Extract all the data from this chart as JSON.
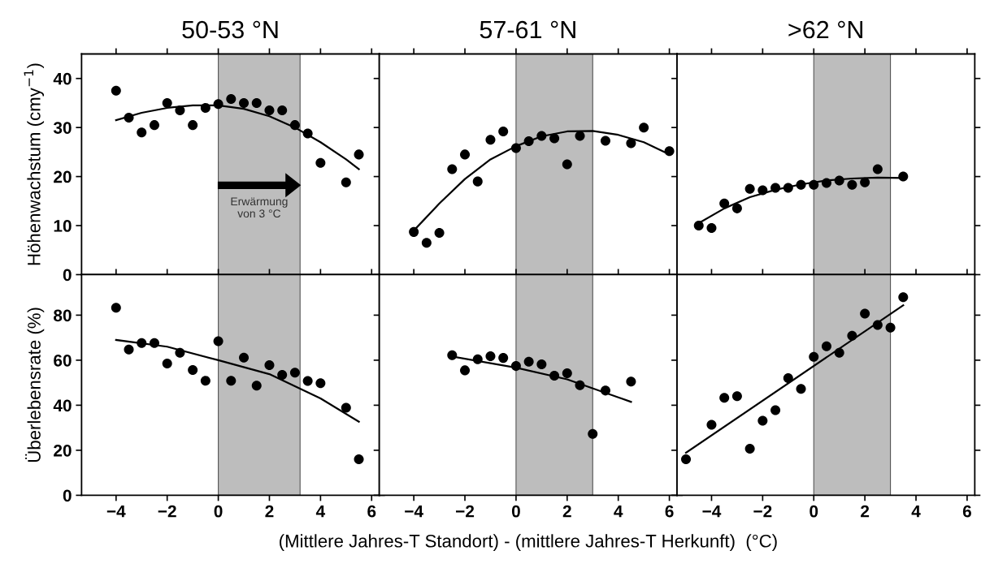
{
  "chart_data": [
    {
      "type": "scatter",
      "title": "50-53 °N",
      "ylabel": "Höhenwachstum (cmy$^{−1}$)",
      "xlim": [
        -5.35,
        6.3
      ],
      "xticks": [
        -4,
        -2,
        0,
        2,
        4,
        6
      ],
      "ylim": [
        0,
        45
      ],
      "yticks": [
        0,
        10,
        20,
        30,
        40
      ],
      "tick_labels": "y",
      "grid": false,
      "annotations": [
        "Erwärmung\nvon 3 °C"
      ],
      "bands": [
        {
          "axis": "x",
          "from": 0,
          "to": 3.2,
          "color": "#bdbdbd"
        }
      ],
      "series": [
        {
          "color": "#000000",
          "marker": "circle",
          "x": [
            -4,
            -3.5,
            -3,
            -2.5,
            -2,
            -1.5,
            -1,
            -0.5,
            0,
            0.5,
            1,
            1.5,
            2,
            2.5,
            3,
            3.5,
            4,
            5,
            5.5
          ],
          "values": [
            37.5,
            32,
            29,
            30.5,
            35,
            33.5,
            30.5,
            34,
            34.8,
            35.8,
            35,
            35,
            33.5,
            33.5,
            30.5,
            28.8,
            22.8,
            18.8,
            24.5
          ]
        },
        {
          "type": "line",
          "color": "#000000",
          "marker": "none",
          "x": [
            -4,
            -3,
            -2,
            -1,
            0,
            1,
            2,
            3,
            4,
            5,
            5.5
          ],
          "values": [
            31.5,
            33,
            34,
            34.5,
            34.5,
            33.8,
            32.3,
            30,
            27,
            23.5,
            21.5
          ]
        }
      ]
    },
    {
      "type": "scatter",
      "title": "57-61 °N",
      "xlim": [
        -5.35,
        6.3
      ],
      "xticks": [
        -4,
        -2,
        0,
        2,
        4,
        6
      ],
      "ylim": [
        0,
        45
      ],
      "yticks": [
        0,
        10,
        20,
        30,
        40
      ],
      "tick_labels": false,
      "grid": false,
      "bands": [
        {
          "axis": "x",
          "from": 0,
          "to": 3,
          "color": "#bdbdbd"
        }
      ],
      "series": [
        {
          "color": "#000000",
          "marker": "circle",
          "x": [
            -4,
            -3.5,
            -3,
            -2.5,
            -2,
            -1.5,
            -1,
            -0.5,
            0,
            0.5,
            1,
            1.5,
            2,
            2.5,
            3.5,
            4.5,
            5,
            6
          ],
          "values": [
            8.7,
            6.5,
            8.5,
            21.5,
            24.5,
            19,
            27.5,
            29.2,
            25.8,
            27.2,
            28.3,
            27.8,
            22.5,
            28.3,
            27.3,
            26.8,
            30,
            25.2
          ]
        },
        {
          "type": "line",
          "color": "#000000",
          "marker": "none",
          "x": [
            -4,
            -3,
            -2,
            -1,
            0,
            1,
            2,
            3,
            4,
            5,
            6
          ],
          "values": [
            9,
            14.5,
            19.5,
            23.5,
            26.2,
            28.2,
            29.2,
            29.3,
            28.5,
            27,
            24.5
          ]
        }
      ]
    },
    {
      "type": "scatter",
      "title": ">62 °N",
      "xlim": [
        -5.35,
        6.3
      ],
      "xticks": [
        -4,
        -2,
        0,
        2,
        4,
        6
      ],
      "ylim": [
        0,
        45
      ],
      "yticks": [
        0,
        10,
        20,
        30,
        40
      ],
      "tick_labels": false,
      "grid": false,
      "bands": [
        {
          "axis": "x",
          "from": 0,
          "to": 3,
          "color": "#bdbdbd"
        }
      ],
      "series": [
        {
          "color": "#000000",
          "marker": "circle",
          "x": [
            -4.5,
            -4,
            -3.5,
            -3,
            -2.5,
            -2,
            -1.5,
            -1,
            -0.5,
            0,
            0.5,
            1,
            1.5,
            2,
            2.5,
            3.5
          ],
          "values": [
            10,
            9.5,
            14.5,
            13.5,
            17.5,
            17.2,
            17.7,
            17.7,
            18.3,
            18.3,
            18.7,
            19.2,
            18.3,
            18.8,
            21.5,
            20
          ]
        },
        {
          "type": "line",
          "color": "#000000",
          "marker": "none",
          "x": [
            -4.5,
            -3.5,
            -2.5,
            -1.5,
            -0.5,
            0.5,
            1.5,
            2.5,
            3.5
          ],
          "values": [
            10.5,
            13.5,
            15.8,
            17.3,
            18.4,
            19.2,
            19.6,
            19.8,
            19.7
          ]
        }
      ]
    },
    {
      "type": "scatter",
      "ylabel": "Überlebensrate (%)",
      "xlim": [
        -5.35,
        6.3
      ],
      "xticks": [
        -4,
        -2,
        0,
        2,
        4,
        6
      ],
      "ylim": [
        0,
        98
      ],
      "yticks": [
        0,
        20,
        40,
        60,
        80
      ],
      "grid": false,
      "bands": [
        {
          "axis": "x",
          "from": 0,
          "to": 3.2,
          "color": "#bdbdbd"
        }
      ],
      "series": [
        {
          "color": "#000000",
          "marker": "circle",
          "x": [
            -4,
            -3.5,
            -3,
            -2.5,
            -2,
            -1.5,
            -1,
            -0.5,
            0,
            0.5,
            1,
            1.5,
            2,
            2.5,
            3,
            3.5,
            4,
            5,
            5.5
          ],
          "values": [
            83.3,
            64.7,
            67.6,
            67.6,
            58.5,
            63.3,
            55.6,
            50.9,
            68.4,
            50.9,
            61.1,
            48.7,
            57.8,
            53.5,
            54.5,
            50.8,
            49.8,
            38.9,
            16
          ]
        },
        {
          "type": "line",
          "color": "#000000",
          "marker": "none",
          "x": [
            -4,
            -2,
            0,
            2,
            4,
            5.5
          ],
          "values": [
            69,
            66,
            60,
            53.8,
            43,
            32.7
          ]
        }
      ]
    },
    {
      "type": "scatter",
      "xlabel": "(Mittlere Jahres-T Standort) - (mittlere Jahres-T Herkunft)  (°C)",
      "xlim": [
        -5.35,
        6.3
      ],
      "xticks": [
        -4,
        -2,
        0,
        2,
        4,
        6
      ],
      "ylim": [
        0,
        98
      ],
      "yticks": [
        0,
        20,
        40,
        60,
        80
      ],
      "tick_labels": "x",
      "grid": false,
      "bands": [
        {
          "axis": "x",
          "from": 0,
          "to": 3,
          "color": "#bdbdbd"
        }
      ],
      "series": [
        {
          "color": "#000000",
          "marker": "circle",
          "x": [
            -2.5,
            -2,
            -1.5,
            -1,
            -0.5,
            0,
            0.5,
            1,
            1.5,
            2,
            2.5,
            3,
            3.5,
            4.5
          ],
          "values": [
            62.2,
            55.5,
            60.4,
            61.8,
            61,
            57.4,
            59.3,
            58.2,
            53.1,
            54.2,
            48.9,
            27.3,
            46.5,
            50.5
          ]
        },
        {
          "type": "line",
          "color": "#000000",
          "marker": "none",
          "x": [
            -2.5,
            0,
            2,
            4.5
          ],
          "values": [
            61.6,
            56.7,
            51.5,
            41.5
          ]
        }
      ]
    },
    {
      "type": "scatter",
      "xlim": [
        -5.35,
        6.3
      ],
      "xticks": [
        -4,
        -2,
        0,
        2,
        4,
        6
      ],
      "ylim": [
        0,
        98
      ],
      "yticks": [
        0,
        20,
        40,
        60,
        80
      ],
      "tick_labels": "x",
      "grid": false,
      "bands": [
        {
          "axis": "x",
          "from": 0,
          "to": 3,
          "color": "#bdbdbd"
        }
      ],
      "series": [
        {
          "color": "#000000",
          "marker": "circle",
          "x": [
            -5,
            -4,
            -3.5,
            -3,
            -2.5,
            -2,
            -1.5,
            -1,
            -0.5,
            0,
            0.5,
            1,
            1.5,
            2,
            2.5,
            3,
            3.5
          ],
          "values": [
            16,
            31.3,
            43.3,
            44,
            20.7,
            33.1,
            37.8,
            52,
            47.3,
            61.5,
            66.2,
            63.3,
            70.9,
            80.7,
            75.6,
            74.5,
            88
          ]
        },
        {
          "type": "line",
          "color": "#000000",
          "marker": "none",
          "x": [
            -5,
            3.5
          ],
          "values": [
            18.9,
            84.4
          ]
        }
      ]
    }
  ]
}
